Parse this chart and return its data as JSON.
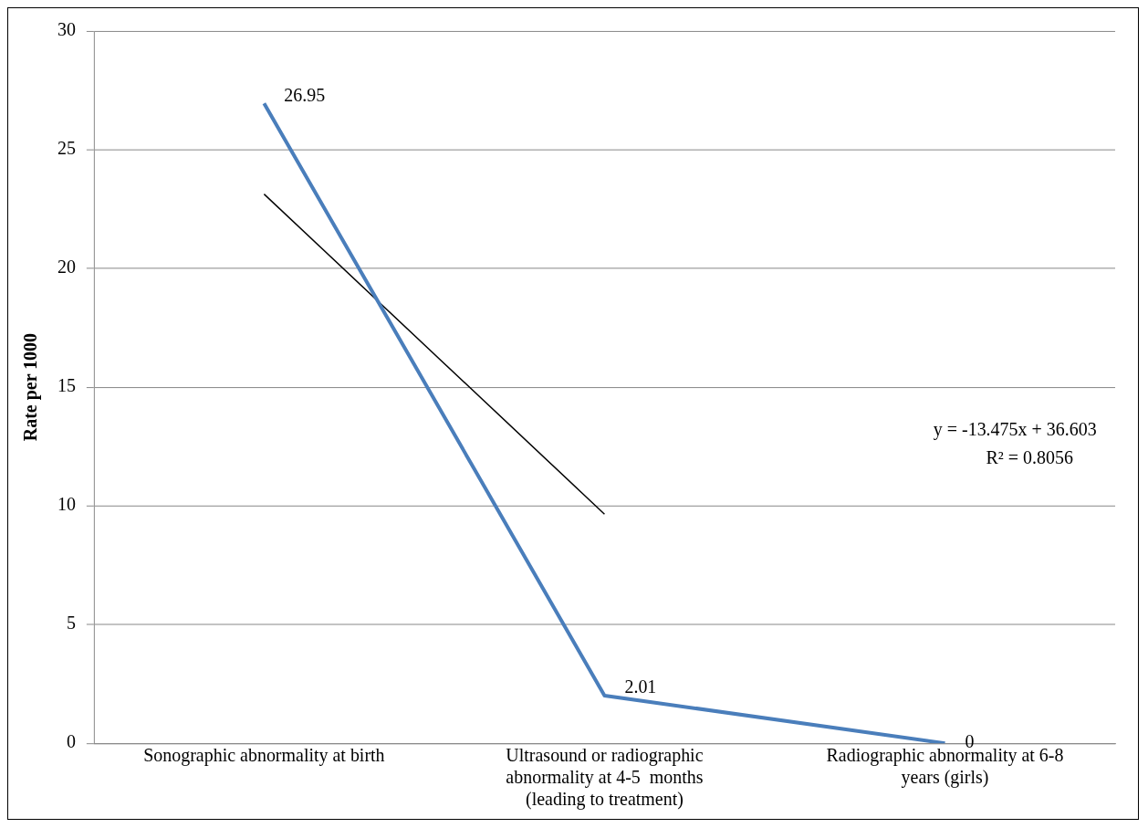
{
  "chart_data": {
    "type": "line",
    "ylabel": "Rate per 1000",
    "categories": [
      "Sonographic abnormality at birth",
      "Ultrasound or radiographic abnormality at 4-5  months (leading to treatment)",
      "Radiographic abnormality at 6-8 years (girls)"
    ],
    "series": [
      {
        "color": "#4a7ebb",
        "values": [
          26.95,
          2.01,
          0
        ],
        "value_labels": [
          "26.95",
          "2.01",
          "0"
        ]
      },
      {
        "type": "line",
        "color": "#000000",
        "values": [
          23.13,
          9.65,
          null
        ]
      }
    ],
    "ylim": [
      0,
      30
    ],
    "yticks": [
      0,
      5,
      10,
      15,
      20,
      25,
      30
    ],
    "grid": "y",
    "legend": false,
    "marker": "none",
    "line_style": "solid",
    "annotations": [
      "y = -13.475x + 36.603",
      "R² = 0.8056"
    ]
  }
}
